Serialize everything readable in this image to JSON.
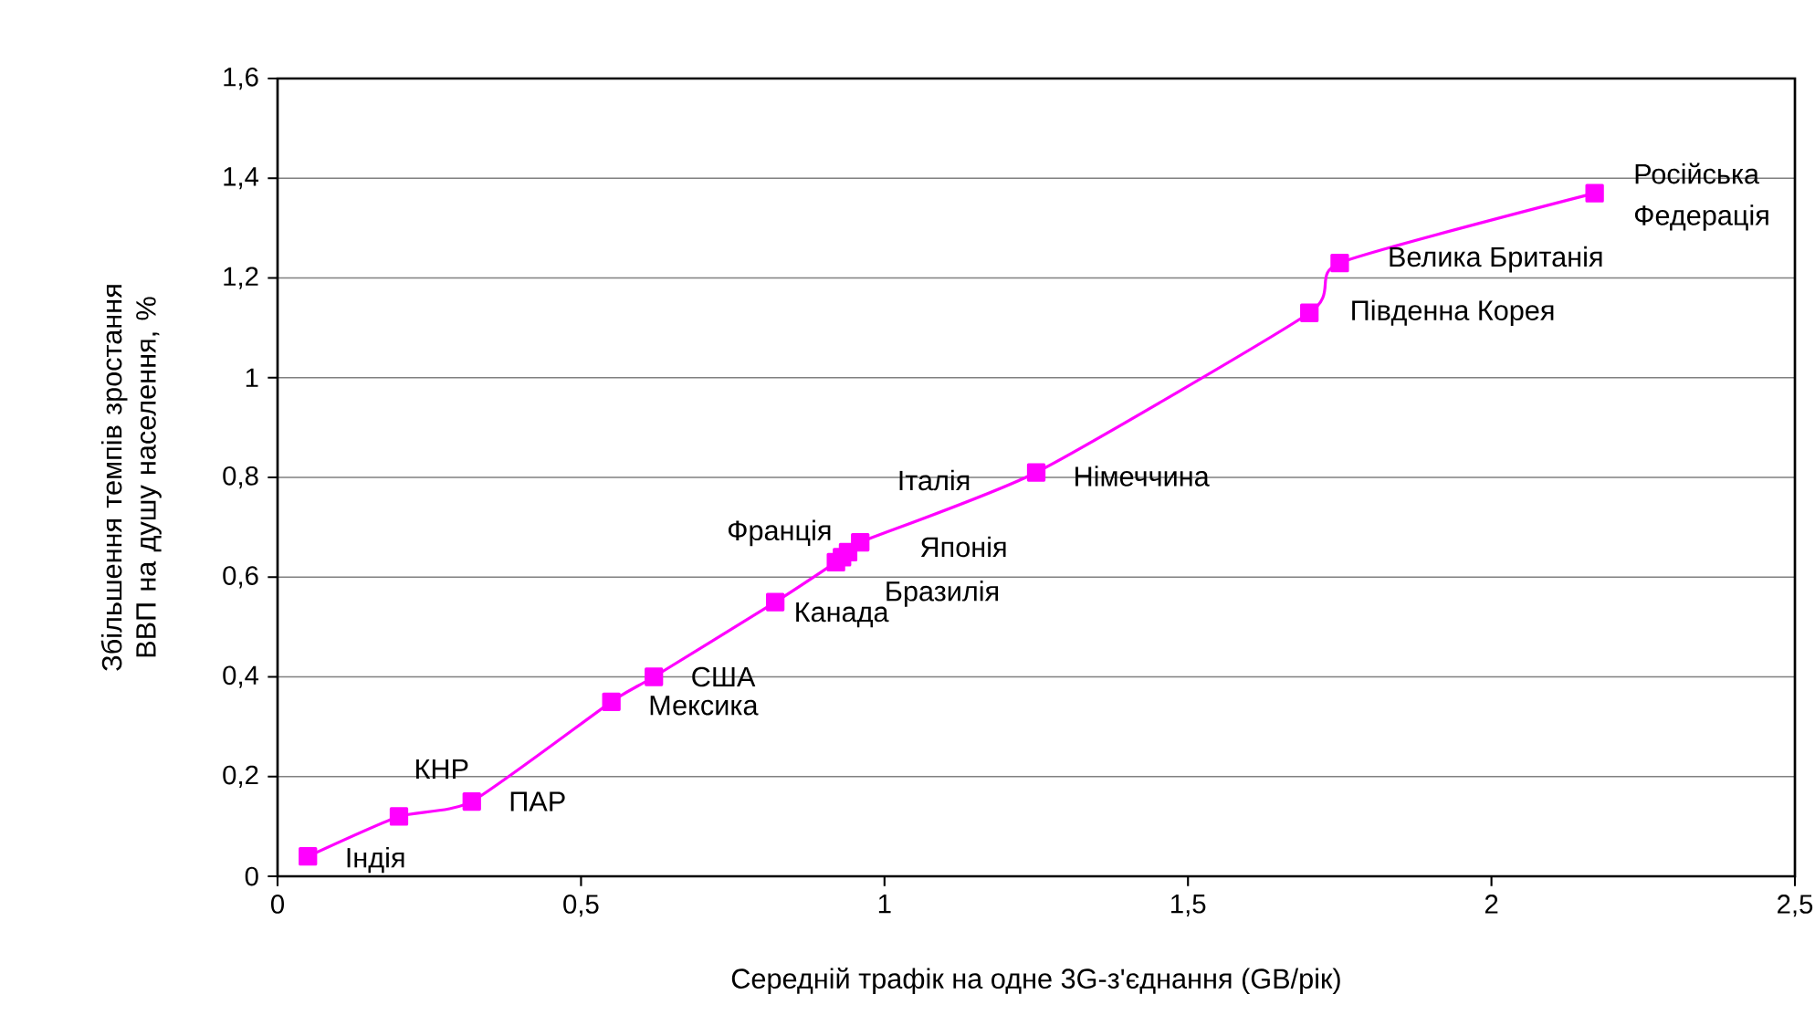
{
  "chart_data": {
    "type": "line",
    "xlabel": "Середній трафік на одне 3G-з'єднання (GB/рік)",
    "ylabel": "Збільшення темпів зростання ВВП на душу населення, %",
    "x": [
      0.05,
      0.2,
      0.32,
      0.55,
      0.62,
      0.82,
      0.92,
      0.93,
      0.94,
      0.96,
      1.25,
      1.7,
      1.75,
      2.17
    ],
    "series": [
      {
        "color": "#ff00ff",
        "values": [
          0.04,
          0.12,
          0.15,
          0.35,
          0.4,
          0.55,
          0.63,
          0.64,
          0.65,
          0.67,
          0.81,
          1.13,
          1.23,
          1.37
        ]
      }
    ],
    "marker": "square",
    "line_style": "solid",
    "grid": "y",
    "xlim": [
      0,
      2.5
    ],
    "ylim": [
      0,
      1.6
    ],
    "xticks": [
      0,
      {
        "value": 0.5,
        "label": "0,5"
      },
      1,
      {
        "value": 1.5,
        "label": "1,5"
      },
      2,
      {
        "value": 2.5,
        "label": "2,5"
      }
    ],
    "yticks": [
      0,
      {
        "value": 0.2,
        "label": "0,2"
      },
      {
        "value": 0.4,
        "label": "0,4"
      },
      {
        "value": 0.6,
        "label": "0,6"
      },
      {
        "value": 0.8,
        "label": "0,8"
      },
      1,
      {
        "value": 1.2,
        "label": "1,2"
      },
      {
        "value": 1.4,
        "label": "1,4"
      },
      {
        "value": 1.6,
        "label": "1,6"
      }
    ],
    "annotations": [
      {
        "text": "Індія",
        "x": 0.05,
        "y": 0.04
      },
      {
        "text": "КНР",
        "x": 0.2,
        "y": 0.12
      },
      {
        "text": "ПАР",
        "x": 0.32,
        "y": 0.15
      },
      {
        "text": "Мексика",
        "x": 0.55,
        "y": 0.35
      },
      {
        "text": "США",
        "x": 0.62,
        "y": 0.4
      },
      {
        "text": "Канада",
        "x": 0.82,
        "y": 0.55
      },
      {
        "text": "Франція",
        "x": 0.92,
        "y": 0.63
      },
      {
        "text": "Бразилія",
        "x": 0.93,
        "y": 0.64
      },
      {
        "text": "Японія",
        "x": 0.94,
        "y": 0.65
      },
      {
        "text": "Італія",
        "x": 0.96,
        "y": 0.67
      },
      {
        "text": "Німеччина",
        "x": 1.25,
        "y": 0.81
      },
      {
        "text": "Південна Корея",
        "x": 1.7,
        "y": 1.13
      },
      {
        "text": "Велика Британія",
        "x": 1.75,
        "y": 1.23
      },
      {
        "text": "Російська Федерація",
        "x": 2.17,
        "y": 1.37
      }
    ]
  }
}
